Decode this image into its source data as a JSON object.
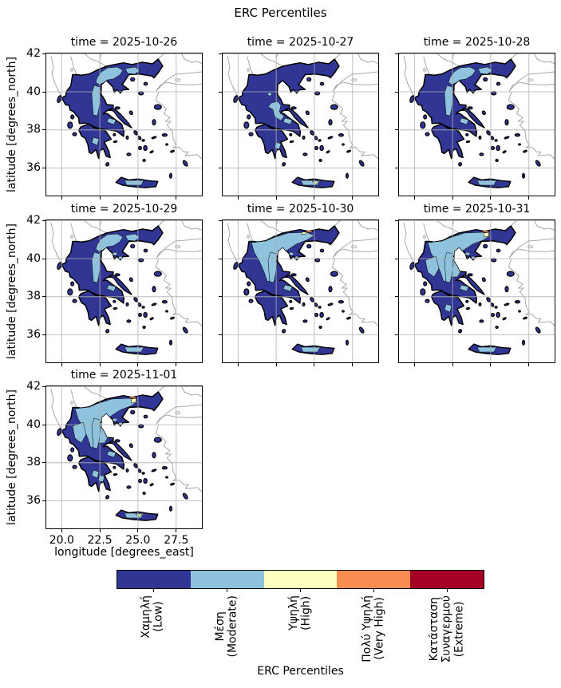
{
  "figure": {
    "title": "ERC Percentiles"
  },
  "axes": {
    "xlabel": "longitude [degrees_east]",
    "ylabel": "latitude [degrees_north]",
    "x_ticks": [
      "20.0",
      "22.5",
      "25.0",
      "27.5"
    ],
    "y_ticks": [
      "42",
      "40",
      "38",
      "36"
    ]
  },
  "subplots": [
    {
      "title": "time = 2025-10-26",
      "overlays": [
        "mac",
        "macE",
        "pindus",
        "boeotia",
        "pelopC",
        "crete"
      ]
    },
    {
      "title": "time = 2025-10-27",
      "overlays": [
        "phthiotis",
        "boeotia",
        "pelopE",
        "crete",
        "yellowCrete"
      ]
    },
    {
      "title": "time = 2025-10-28",
      "overlays": [
        "mac",
        "macE",
        "pindus",
        "boeotia",
        "crete"
      ]
    },
    {
      "title": "time = 2025-10-29",
      "overlays": [
        "mac",
        "macE",
        "pindus",
        "boeotia",
        "crete",
        "chalk"
      ]
    },
    {
      "title": "time = 2025-10-30",
      "overlays": [
        "extN",
        "pindus",
        "boeotia",
        "crete",
        "chalk",
        "yellowNsmall",
        "orangeN"
      ]
    },
    {
      "title": "time = 2025-10-31",
      "overlays": [
        "extN",
        "extC",
        "extW",
        "pindus",
        "boeotia",
        "pelopC",
        "crete",
        "chalk",
        "yellowN",
        "orangeN"
      ]
    },
    {
      "title": "time = 2025-11-01",
      "overlays": [
        "extN",
        "extC",
        "extW",
        "pindus",
        "boeotia",
        "pelopC",
        "pelopE",
        "crete",
        "chalk",
        "yellowN",
        "yellowCrete",
        "orangeN"
      ]
    }
  ],
  "colorbar": {
    "label": "ERC Percentiles",
    "categories": [
      {
        "name": "low",
        "color": "#313695",
        "lines": [
          "Χαμηλή",
          "(Low)"
        ]
      },
      {
        "name": "moderate",
        "color": "#8fc2dd",
        "lines": [
          "Μέση",
          "(Moderate)"
        ]
      },
      {
        "name": "high",
        "color": "#ffffbf",
        "lines": [
          "Υψηλή",
          "(High)"
        ]
      },
      {
        "name": "very-high",
        "color": "#f88d51",
        "lines": [
          "Πολύ Υψηλή",
          "(Very High)"
        ]
      },
      {
        "name": "extreme",
        "color": "#a50026",
        "lines": [
          "Κατάσταση",
          "Συναγερμού",
          "(Extreme)"
        ]
      }
    ]
  },
  "chart_data": {
    "type": "choropleth-map-facets",
    "title": "ERC Percentiles",
    "region": "Greece",
    "facets": [
      "time = 2025-10-26",
      "time = 2025-10-27",
      "time = 2025-10-28",
      "time = 2025-10-29",
      "time = 2025-10-30",
      "time = 2025-10-31",
      "time = 2025-11-01"
    ],
    "grid_layout": {
      "rows": 3,
      "cols": 3,
      "used_panels": 7
    },
    "xlabel": "longitude [degrees_east]",
    "ylabel": "latitude [degrees_north]",
    "xlim": [
      18.9,
      29.2
    ],
    "ylim": [
      34.6,
      42.1
    ],
    "x_ticks": [
      20.0,
      22.5,
      25.0,
      27.5
    ],
    "y_ticks": [
      36,
      38,
      40,
      42
    ],
    "grid": true,
    "colorbar": {
      "label": "ERC Percentiles",
      "orientation": "horizontal",
      "classes": [
        "Χαμηλή (Low)",
        "Μέση (Moderate)",
        "Υψηλή (High)",
        "Πολύ Υψηλή (Very High)",
        "Κατάσταση Συναγερμού (Extreme)"
      ],
      "colors": [
        "#313695",
        "#8fc2dd",
        "#ffffbf",
        "#f88d51",
        "#a50026"
      ]
    },
    "facet_summaries": [
      {
        "time": "2025-10-26",
        "dominant": "Low",
        "moderate": [
          "central Macedonia",
          "west Thessaly strip",
          "Boeotia",
          "central Peloponnese",
          "central Crete"
        ],
        "high": [],
        "very_high": []
      },
      {
        "time": "2025-10-27",
        "dominant": "Low",
        "moderate": [
          "central Greece (Phthiotis)",
          "Boeotia",
          "east Peloponnese",
          "central Crete"
        ],
        "high": [
          "central Crete spot"
        ],
        "very_high": []
      },
      {
        "time": "2025-10-28",
        "dominant": "Low",
        "moderate": [
          "central and east Macedonia",
          "west Thessaly strip",
          "Boeotia",
          "central Crete"
        ],
        "high": [],
        "very_high": []
      },
      {
        "time": "2025-10-29",
        "dominant": "Low",
        "moderate": [
          "central and east Macedonia",
          "west Thessaly strip",
          "Boeotia",
          "Chalkidiki spots",
          "central Crete"
        ],
        "high": [],
        "very_high": []
      },
      {
        "time": "2025-10-30",
        "dominant": "Low",
        "moderate": [
          "northern Greece band",
          "west Thessaly strip",
          "Boeotia",
          "central Crete"
        ],
        "high": [
          "small spot east Macedonia"
        ],
        "very_high": [
          "sliver at north border"
        ]
      },
      {
        "time": "2025-10-31",
        "dominant": "Low/Moderate",
        "moderate": [
          "most of northern and central Greece",
          "Epirus patches",
          "central Peloponnese",
          "central Crete"
        ],
        "high": [
          "east Macedonia patch"
        ],
        "very_high": [
          "sliver at north border"
        ]
      },
      {
        "time": "2025-11-01",
        "dominant": "Low/Moderate",
        "moderate": [
          "most of northern and central Greece",
          "Epirus",
          "Peloponnese patches",
          "central Crete"
        ],
        "high": [
          "east Macedonia patch",
          "central Crete spot"
        ],
        "very_high": [
          "sliver at north border"
        ]
      }
    ]
  }
}
